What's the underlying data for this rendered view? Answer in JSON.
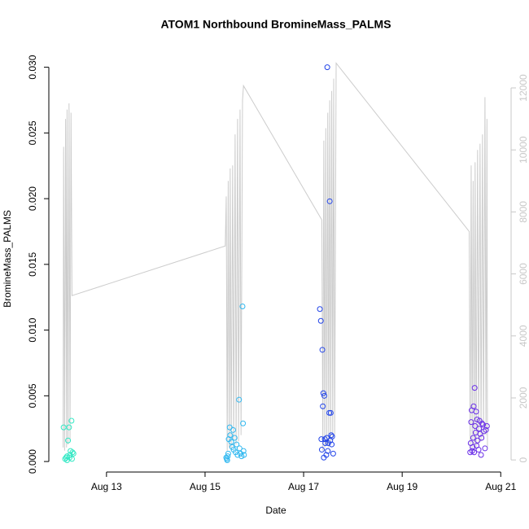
{
  "chart_data": {
    "type": "scatter",
    "title": "ATOM1 Northbound BromineMass_PALMS",
    "xlabel": "Date",
    "ylabel": "BromineMass_PALMS",
    "xlim": [
      11.83,
      21.21
    ],
    "xticks": [
      {
        "value": 13,
        "label": "Aug 13"
      },
      {
        "value": 15,
        "label": "Aug 15"
      },
      {
        "value": 17,
        "label": "Aug 17"
      },
      {
        "value": 19,
        "label": "Aug 19"
      },
      {
        "value": 21,
        "label": "Aug 21"
      }
    ],
    "ylim": [
      -0.0008,
      0.0314
    ],
    "yticks": [
      {
        "value": 0,
        "label": "0.000"
      },
      0.005,
      {
        "value": 0.01,
        "label": "0.010"
      },
      0.015,
      {
        "value": 0.02,
        "label": "0.020"
      },
      0.025,
      {
        "value": 0.03,
        "label": "0.030"
      }
    ],
    "y2lim": [
      -390,
      13260
    ],
    "y2ticks": [
      0,
      2000,
      4000,
      6000,
      8000,
      10000,
      12000
    ],
    "y2color": "#c8c8c8",
    "series": [
      {
        "type": "line",
        "axis": "y2",
        "color": "#cccccc",
        "x": [
          12.12,
          12.13,
          12.15,
          12.17,
          12.19,
          12.2,
          12.22,
          12.24,
          12.26,
          12.28,
          12.3,
          15.41,
          15.43,
          15.45,
          15.47,
          15.49,
          15.51,
          15.53,
          15.56,
          15.58,
          15.61,
          15.63,
          15.66,
          15.68,
          15.71,
          15.73,
          15.76,
          15.78,
          17.37,
          17.39,
          17.41,
          17.43,
          17.45,
          17.47,
          17.49,
          17.51,
          17.53,
          17.55,
          17.57,
          17.59,
          17.61,
          17.63,
          17.66,
          20.36,
          20.38,
          20.4,
          20.42,
          20.44,
          20.46,
          20.48,
          20.5,
          20.53,
          20.55,
          20.58,
          20.6,
          20.63,
          20.65,
          20.68,
          20.7,
          20.72,
          20.73
        ],
        "values": [
          400,
          10100,
          300,
          11000,
          400,
          11300,
          500,
          11500,
          600,
          11200,
          5300,
          6900,
          8500,
          300,
          9000,
          400,
          9400,
          300,
          9500,
          400,
          10500,
          500,
          11000,
          600,
          11300,
          800,
          11600,
          12070,
          7740,
          300,
          10300,
          400,
          10700,
          500,
          11200,
          400,
          11600,
          600,
          11900,
          700,
          12300,
          800,
          12800,
          7370,
          300,
          9500,
          400,
          9000,
          300,
          9600,
          400,
          10000,
          500,
          10200,
          600,
          10500,
          700,
          11700,
          800,
          11000,
          400
        ]
      },
      {
        "color": "#33e8c4",
        "x": [
          12.13,
          12.16,
          12.18,
          12.2,
          12.22,
          12.24,
          12.26,
          12.27,
          12.29,
          12.3,
          12.31,
          12.33,
          12.2,
          12.25
        ],
        "values": [
          0.0026,
          0.0002,
          0.0003,
          0.0004,
          0.0016,
          0.0026,
          0.0005,
          0.0008,
          0.0031,
          0.0002,
          0.0007,
          0.0006,
          0.0001,
          0.0003
        ]
      },
      {
        "color": "#30b8f0",
        "x": [
          15.43,
          15.44,
          15.45,
          15.46,
          15.47,
          15.48,
          15.5,
          15.51,
          15.53,
          15.55,
          15.57,
          15.58,
          15.6,
          15.62,
          15.64,
          15.66,
          15.69,
          15.7,
          15.72,
          15.74,
          15.76,
          15.77,
          15.78,
          15.79
        ],
        "values": [
          0.0003,
          0.0002,
          0.0001,
          0.0004,
          0.0006,
          0.0017,
          0.0026,
          0.002,
          0.0015,
          0.0011,
          0.0024,
          0.0009,
          0.0018,
          0.0007,
          0.0013,
          0.0005,
          0.0047,
          0.001,
          0.0006,
          0.0004,
          0.0118,
          0.0029,
          0.0008,
          0.0005
        ]
      },
      {
        "color": "#2244e8",
        "x": [
          17.33,
          17.35,
          17.36,
          17.37,
          17.38,
          17.39,
          17.4,
          17.41,
          17.42,
          17.43,
          17.44,
          17.46,
          17.47,
          17.48,
          17.49,
          17.5,
          17.52,
          17.53,
          17.54,
          17.55,
          17.56,
          17.57,
          17.58,
          17.6
        ],
        "values": [
          0.0116,
          0.0107,
          0.0017,
          0.0009,
          0.0085,
          0.0042,
          0.0052,
          0.0003,
          0.005,
          0.0017,
          0.0014,
          0.0005,
          0.0018,
          0.03,
          0.0008,
          0.0014,
          0.0037,
          0.0198,
          0.0016,
          0.0037,
          0.002,
          0.0013,
          0.0019,
          0.0006
        ]
      },
      {
        "color": "#6a2ee8",
        "x": [
          20.38,
          20.39,
          20.4,
          20.41,
          20.42,
          20.43,
          20.44,
          20.45,
          20.46,
          20.47,
          20.48,
          20.49,
          20.5,
          20.51,
          20.52,
          20.53,
          20.55,
          20.56,
          20.57,
          20.58,
          20.6,
          20.61,
          20.62,
          20.64,
          20.66,
          20.68,
          20.7,
          20.72
        ],
        "values": [
          0.0007,
          0.0014,
          0.003,
          0.0039,
          0.0008,
          0.0011,
          0.0018,
          0.0042,
          0.0007,
          0.0056,
          0.0027,
          0.0022,
          0.0038,
          0.0012,
          0.0032,
          0.0016,
          0.0009,
          0.0025,
          0.0031,
          0.0021,
          0.0005,
          0.0018,
          0.0029,
          0.0028,
          0.0023,
          0.001,
          0.0024,
          0.0027
        ]
      }
    ]
  }
}
